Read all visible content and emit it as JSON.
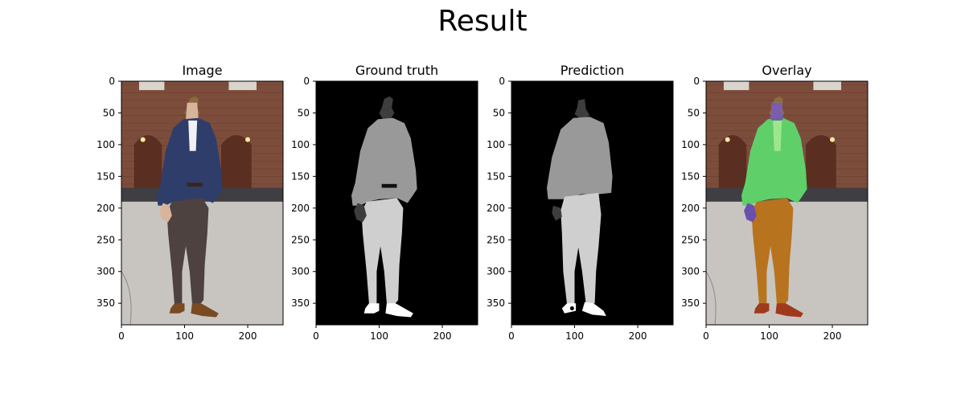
{
  "figure": {
    "title": "Result"
  },
  "chart_data": [
    {
      "type": "image",
      "title": "Image",
      "x_ticks": [
        0,
        100,
        200
      ],
      "y_ticks": [
        0,
        50,
        100,
        150,
        200,
        250,
        300,
        350
      ],
      "xlim": [
        0,
        256
      ],
      "ylim": [
        384,
        0
      ]
    },
    {
      "type": "image",
      "title": "Ground truth",
      "x_ticks": [
        0,
        100,
        200
      ],
      "y_ticks": [
        0,
        50,
        100,
        150,
        200,
        250,
        300,
        350
      ],
      "xlim": [
        0,
        256
      ],
      "ylim": [
        384,
        0
      ],
      "mask_colors": {
        "background": "#000000",
        "hair": "#3d3d3d",
        "upper": "#999999",
        "lower": "#cfcfcf",
        "shoes": "#ffffff"
      }
    },
    {
      "type": "image",
      "title": "Prediction",
      "x_ticks": [
        0,
        100,
        200
      ],
      "y_ticks": [
        0,
        50,
        100,
        150,
        200,
        250,
        300,
        350
      ],
      "xlim": [
        0,
        256
      ],
      "ylim": [
        384,
        0
      ],
      "mask_colors": {
        "background": "#000000",
        "hair": "#3d3d3d",
        "upper": "#999999",
        "lower": "#cfcfcf",
        "shoes": "#ffffff"
      }
    },
    {
      "type": "image",
      "title": "Overlay",
      "x_ticks": [
        0,
        100,
        200
      ],
      "y_ticks": [
        0,
        50,
        100,
        150,
        200,
        250,
        300,
        350
      ],
      "xlim": [
        0,
        256
      ],
      "ylim": [
        384,
        0
      ],
      "overlay_colors": {
        "face": "#6a4fb0",
        "upper": "#5fcf6a",
        "lower": "#b8731f",
        "shoes": "#a03a1c"
      }
    }
  ]
}
